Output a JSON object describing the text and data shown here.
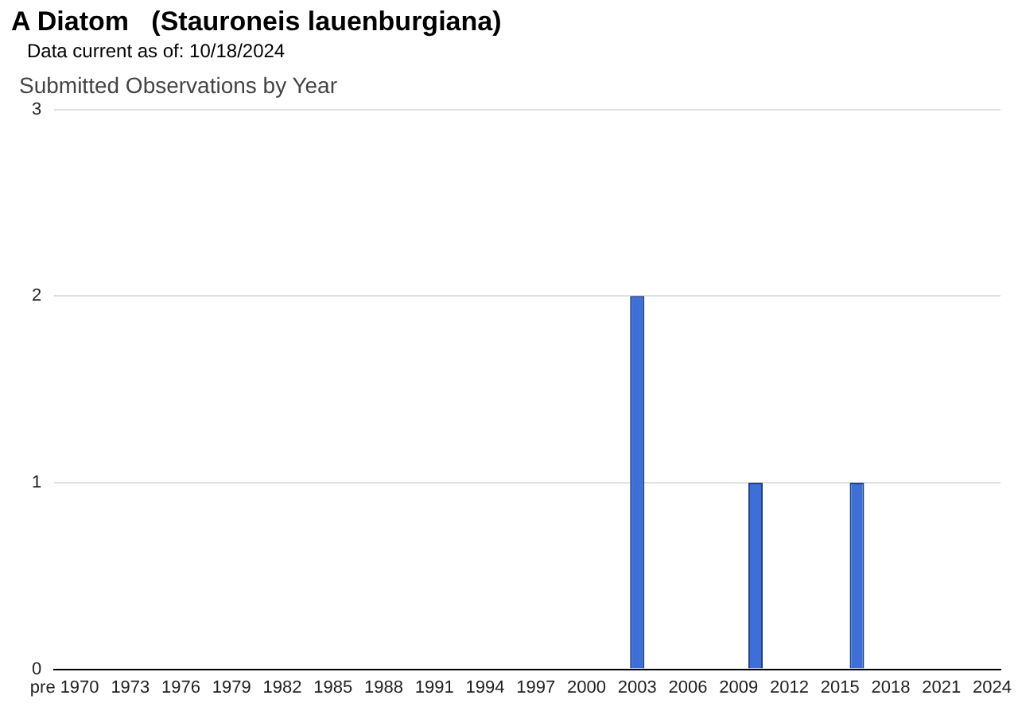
{
  "chart_data": {
    "type": "bar",
    "title": "A Diatom   (Stauroneis lauenburgiana)",
    "subtitle": "Data current as of: 10/18/2024",
    "annotations": [
      "Submitted Observations by Year"
    ],
    "categories": [
      "pre",
      "1970",
      null,
      null,
      "1973",
      null,
      null,
      "1976",
      null,
      null,
      "1979",
      null,
      null,
      "1982",
      null,
      null,
      "1985",
      null,
      null,
      "1988",
      null,
      null,
      "1991",
      null,
      null,
      "1994",
      null,
      null,
      "1997",
      null,
      null,
      "2000",
      null,
      null,
      "2003",
      null,
      null,
      "2006",
      null,
      null,
      "2009",
      null,
      null,
      "2012",
      null,
      null,
      "2015",
      null,
      null,
      "2018",
      null,
      null,
      "2021",
      null,
      null,
      "2024"
    ],
    "values": [
      0,
      0,
      0,
      0,
      0,
      0,
      0,
      0,
      0,
      0,
      0,
      0,
      0,
      0,
      0,
      0,
      0,
      0,
      0,
      0,
      0,
      0,
      0,
      0,
      0,
      0,
      0,
      0,
      0,
      0,
      0,
      0,
      0,
      0,
      2,
      0,
      0,
      0,
      0,
      0,
      0,
      1,
      0,
      0,
      0,
      0,
      0,
      1,
      0,
      0,
      0,
      0,
      0,
      0,
      0,
      0
    ],
    "color": "#3d6fd6",
    "ylim": [
      0,
      3
    ],
    "yticks": [
      0,
      1,
      2,
      3
    ],
    "grid": "y",
    "legend": false
  }
}
